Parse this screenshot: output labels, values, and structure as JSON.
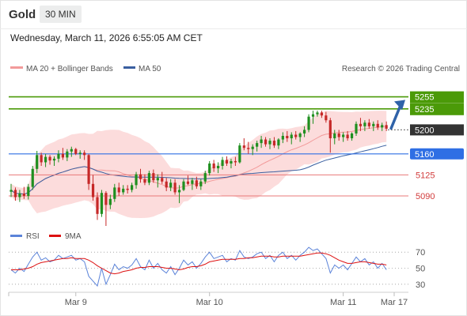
{
  "header": {
    "instrument": "Gold",
    "timeframe": "30 MIN",
    "timestamp": "Wednesday, March 11, 2026 6:55:05 AM CET"
  },
  "legend": {
    "bollinger_label": "MA 20 + Bollinger Bands",
    "ma50_label": "MA 50",
    "source": "Research © 2026 Trading Central",
    "rsi_label": "RSI",
    "rsi_ma_label": "9MA"
  },
  "colors": {
    "resistance": "#4b9a08",
    "current": "#333333",
    "support_key": "#2f6fe4",
    "support": "#e87878",
    "bollinger_fill": "#fcdcdc",
    "ma20": "#f29a9a",
    "ma50": "#3a5fa0",
    "candle_up": "#1f8f1f",
    "candle_down": "#c62828",
    "rsi": "#5b83d9",
    "rsi_ma": "#dd1111",
    "arrow": "#2f62a8"
  },
  "chart_data": [
    {
      "type": "candlestick",
      "title": "Gold",
      "timeframe": "30 MIN",
      "x_tick_labels": [
        "Mar 9",
        "Mar 10",
        "Mar 11",
        "Mar 17"
      ],
      "ylim": [
        5040,
        5290
      ],
      "price_levels": [
        {
          "label": "5255",
          "value": 5255,
          "kind": "resistance"
        },
        {
          "label": "5235",
          "value": 5235,
          "kind": "resistance"
        },
        {
          "label": "5200",
          "value": 5200,
          "kind": "current"
        },
        {
          "label": "5160",
          "value": 5160,
          "kind": "support-key"
        },
        {
          "label": "5125",
          "value": 5125,
          "kind": "support"
        },
        {
          "label": "5090",
          "value": 5090,
          "kind": "support"
        }
      ],
      "series": [
        {
          "name": "MA 20 + Bollinger Bands",
          "kind": "bollinger"
        },
        {
          "name": "MA 50",
          "kind": "moving-average"
        }
      ],
      "forecast_arrow": {
        "from": 5200,
        "to": 5250
      },
      "candles": [
        [
          5097,
          5110,
          5088,
          5100
        ],
        [
          5100,
          5104,
          5082,
          5088
        ],
        [
          5088,
          5100,
          5080,
          5094
        ],
        [
          5094,
          5105,
          5085,
          5090
        ],
        [
          5090,
          5110,
          5084,
          5105
        ],
        [
          5105,
          5140,
          5100,
          5135
        ],
        [
          5135,
          5165,
          5128,
          5158
        ],
        [
          5158,
          5162,
          5140,
          5146
        ],
        [
          5146,
          5160,
          5138,
          5155
        ],
        [
          5155,
          5158,
          5142,
          5149
        ],
        [
          5149,
          5156,
          5140,
          5152
        ],
        [
          5152,
          5166,
          5146,
          5160
        ],
        [
          5160,
          5170,
          5150,
          5154
        ],
        [
          5154,
          5168,
          5148,
          5164
        ],
        [
          5164,
          5172,
          5155,
          5168
        ],
        [
          5168,
          5170,
          5158,
          5160
        ],
        [
          5160,
          5166,
          5152,
          5162
        ],
        [
          5162,
          5166,
          5150,
          5158
        ],
        [
          5158,
          5160,
          5100,
          5110
        ],
        [
          5110,
          5125,
          5082,
          5088
        ],
        [
          5088,
          5096,
          5050,
          5060
        ],
        [
          5060,
          5100,
          5055,
          5095
        ],
        [
          5095,
          5098,
          5040,
          5075
        ],
        [
          5075,
          5092,
          5068,
          5085
        ],
        [
          5085,
          5110,
          5080,
          5104
        ],
        [
          5104,
          5112,
          5090,
          5096
        ],
        [
          5096,
          5108,
          5092,
          5102
        ],
        [
          5102,
          5108,
          5094,
          5100
        ],
        [
          5100,
          5112,
          5096,
          5108
        ],
        [
          5108,
          5130,
          5102,
          5126
        ],
        [
          5126,
          5135,
          5112,
          5118
        ],
        [
          5118,
          5126,
          5108,
          5112
        ],
        [
          5112,
          5132,
          5108,
          5128
        ],
        [
          5128,
          5134,
          5112,
          5116
        ],
        [
          5116,
          5126,
          5104,
          5120
        ],
        [
          5120,
          5130,
          5110,
          5114
        ],
        [
          5114,
          5120,
          5098,
          5104
        ],
        [
          5104,
          5118,
          5098,
          5112
        ],
        [
          5112,
          5118,
          5092,
          5096
        ],
        [
          5096,
          5108,
          5078,
          5100
        ],
        [
          5100,
          5118,
          5098,
          5114
        ],
        [
          5114,
          5124,
          5108,
          5110
        ],
        [
          5110,
          5120,
          5100,
          5116
        ],
        [
          5116,
          5122,
          5102,
          5106
        ],
        [
          5106,
          5118,
          5100,
          5114
        ],
        [
          5114,
          5132,
          5110,
          5128
        ],
        [
          5128,
          5148,
          5124,
          5144
        ],
        [
          5144,
          5150,
          5130,
          5136
        ],
        [
          5136,
          5146,
          5128,
          5140
        ],
        [
          5140,
          5155,
          5134,
          5150
        ],
        [
          5150,
          5156,
          5140,
          5144
        ],
        [
          5144,
          5152,
          5136,
          5148
        ],
        [
          5148,
          5155,
          5140,
          5146
        ],
        [
          5146,
          5178,
          5144,
          5174
        ],
        [
          5174,
          5186,
          5166,
          5170
        ],
        [
          5170,
          5180,
          5160,
          5168
        ],
        [
          5168,
          5176,
          5158,
          5172
        ],
        [
          5172,
          5182,
          5164,
          5178
        ],
        [
          5178,
          5190,
          5170,
          5184
        ],
        [
          5184,
          5188,
          5172,
          5176
        ],
        [
          5176,
          5186,
          5168,
          5182
        ],
        [
          5182,
          5188,
          5170,
          5174
        ],
        [
          5174,
          5186,
          5168,
          5184
        ],
        [
          5184,
          5196,
          5178,
          5190
        ],
        [
          5190,
          5198,
          5180,
          5186
        ],
        [
          5186,
          5196,
          5176,
          5192
        ],
        [
          5192,
          5198,
          5184,
          5188
        ],
        [
          5188,
          5196,
          5180,
          5194
        ],
        [
          5194,
          5206,
          5188,
          5200
        ],
        [
          5200,
          5226,
          5196,
          5222
        ],
        [
          5222,
          5232,
          5210,
          5226
        ],
        [
          5226,
          5232,
          5222,
          5229
        ],
        [
          5229,
          5232,
          5220,
          5224
        ],
        [
          5224,
          5230,
          5212,
          5216
        ],
        [
          5216,
          5220,
          5162,
          5186
        ],
        [
          5186,
          5200,
          5176,
          5194
        ],
        [
          5194,
          5200,
          5182,
          5188
        ],
        [
          5188,
          5196,
          5180,
          5192
        ],
        [
          5192,
          5198,
          5182,
          5186
        ],
        [
          5186,
          5196,
          5182,
          5194
        ],
        [
          5194,
          5214,
          5190,
          5210
        ],
        [
          5210,
          5220,
          5198,
          5206
        ],
        [
          5206,
          5216,
          5198,
          5212
        ],
        [
          5212,
          5218,
          5202,
          5206
        ],
        [
          5206,
          5214,
          5198,
          5210
        ],
        [
          5210,
          5216,
          5200,
          5204
        ],
        [
          5204,
          5212,
          5198,
          5208
        ],
        [
          5208,
          5214,
          5198,
          5202
        ]
      ]
    },
    {
      "type": "line",
      "title": "RSI",
      "series": [
        {
          "name": "RSI"
        },
        {
          "name": "9MA"
        }
      ],
      "y_tick_labels": [
        "70",
        "50",
        "30"
      ],
      "yticks": [
        70,
        50,
        30
      ],
      "ylim": [
        20,
        80
      ],
      "rsi": [
        48,
        44,
        50,
        46,
        55,
        64,
        70,
        60,
        63,
        58,
        60,
        66,
        62,
        64,
        66,
        60,
        62,
        58,
        40,
        34,
        28,
        50,
        30,
        42,
        55,
        48,
        52,
        50,
        54,
        62,
        52,
        48,
        60,
        50,
        56,
        48,
        44,
        52,
        42,
        50,
        60,
        54,
        58,
        50,
        56,
        64,
        70,
        62,
        64,
        66,
        58,
        62,
        60,
        72,
        64,
        62,
        64,
        68,
        70,
        62,
        66,
        58,
        66,
        70,
        62,
        66,
        60,
        66,
        70,
        76,
        72,
        74,
        68,
        62,
        44,
        54,
        50,
        54,
        48,
        56,
        64,
        58,
        62,
        54,
        58,
        50,
        56,
        48
      ],
      "rsi_ma": [
        48,
        48,
        48,
        49,
        50,
        52,
        55,
        57,
        58,
        59,
        60,
        61,
        62,
        62,
        63,
        62,
        62,
        62,
        60,
        57,
        53,
        50,
        47,
        44,
        43,
        44,
        46,
        47,
        48,
        50,
        51,
        51,
        52,
        52,
        52,
        51,
        50,
        50,
        49,
        48,
        49,
        51,
        52,
        52,
        53,
        55,
        58,
        59,
        60,
        61,
        61,
        61,
        61,
        62,
        62,
        63,
        63,
        64,
        65,
        65,
        65,
        64,
        64,
        65,
        65,
        65,
        65,
        65,
        66,
        67,
        68,
        69,
        69,
        68,
        66,
        63,
        60,
        58,
        56,
        56,
        57,
        58,
        58,
        57,
        56,
        55,
        55,
        54
      ]
    }
  ]
}
